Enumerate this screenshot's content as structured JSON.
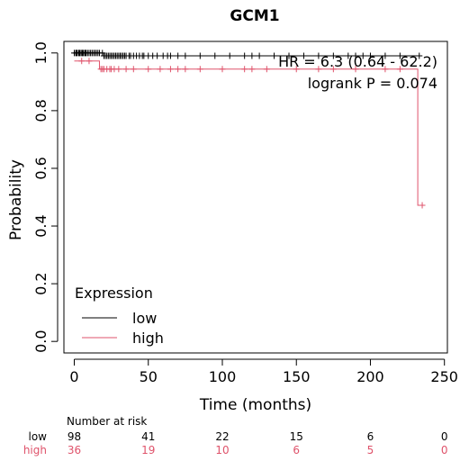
{
  "chart_data": {
    "type": "line",
    "title": "GCM1",
    "xlabel": "Time (months)",
    "ylabel": "Probability",
    "xlim": [
      -7,
      252
    ],
    "ylim": [
      -0.04,
      1.04
    ],
    "x_ticks": [
      "0",
      "50",
      "100",
      "150",
      "200",
      "250"
    ],
    "x_tick_values": [
      0,
      50,
      100,
      150,
      200,
      250
    ],
    "y_ticks": [
      "0.0",
      "0.2",
      "0.4",
      "0.6",
      "0.8",
      "1.0"
    ],
    "y_tick_values": [
      0,
      0.2,
      0.4,
      0.6,
      0.8,
      1.0
    ],
    "annotations": {
      "hr": "HR = 6.3 (0.64 - 62.2)",
      "logrank": "logrank P = 0.074"
    },
    "legend": {
      "title": "Expression",
      "position": "bottom-left",
      "entries": [
        {
          "label": "low",
          "color": "#000000"
        },
        {
          "label": "high",
          "color": "#DF536B"
        }
      ]
    },
    "series": [
      {
        "name": "low",
        "color": "#000000",
        "steps": [
          [
            0,
            1.0
          ],
          [
            20,
            0.99
          ],
          [
            233,
            0.99
          ]
        ],
        "censors": [
          0,
          1,
          1.5,
          2,
          3,
          3.5,
          4,
          5,
          5.5,
          6,
          7,
          7.5,
          8,
          9,
          10,
          11,
          12,
          13,
          14,
          15,
          16,
          17,
          19,
          20,
          21,
          22,
          23,
          24,
          25,
          26,
          27,
          28,
          29,
          30,
          31,
          32,
          33,
          34,
          35,
          37,
          38,
          40,
          42,
          44,
          46,
          47,
          50,
          53,
          56,
          60,
          63,
          65,
          70,
          75,
          85,
          95,
          105,
          115,
          120,
          125,
          135,
          145,
          155,
          165,
          175,
          185,
          190,
          195,
          200,
          210,
          220,
          233
        ]
      },
      {
        "name": "high",
        "color": "#DF536B",
        "steps": [
          [
            0,
            0.972
          ],
          [
            17,
            0.944
          ],
          [
            232,
            0.944
          ],
          [
            232,
            0.472
          ],
          [
            235,
            0.472
          ]
        ],
        "censors": [
          5,
          10,
          18,
          19,
          20,
          22,
          24,
          25,
          27,
          30,
          35,
          40,
          50,
          58,
          65,
          70,
          75,
          85,
          100,
          115,
          120,
          130,
          150,
          165,
          175,
          190,
          210,
          220,
          235
        ]
      }
    ]
  },
  "risk_table": {
    "title": "Number at risk",
    "rows": [
      {
        "label": "low",
        "color": "#000000",
        "values": [
          "98",
          "41",
          "22",
          "15",
          "6",
          "0"
        ]
      },
      {
        "label": "high",
        "color": "#DF536B",
        "values": [
          "36",
          "19",
          "10",
          "6",
          "5",
          "0"
        ]
      }
    ]
  }
}
